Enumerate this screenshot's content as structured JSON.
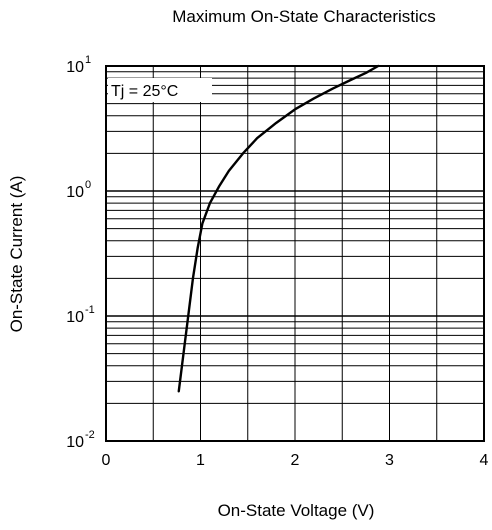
{
  "chart_data": {
    "type": "line",
    "title": "Maximum On-State Characteristics",
    "xlabel": "On-State Voltage  (V)",
    "ylabel": "On-State Current  (A)",
    "xlim": [
      0,
      4
    ],
    "ylim": [
      0.01,
      10
    ],
    "y_scale": "log",
    "grid": true,
    "x_ticks": [
      {
        "value": 0,
        "label": "0"
      },
      {
        "value": 1,
        "label": "1"
      },
      {
        "value": 2,
        "label": "2"
      },
      {
        "value": 3,
        "label": "3"
      },
      {
        "value": 4,
        "label": "4"
      }
    ],
    "y_ticks": [
      {
        "value": 0.01,
        "base": "10",
        "exp": "-2"
      },
      {
        "value": 0.1,
        "base": "10",
        "exp": "-1"
      },
      {
        "value": 1,
        "base": "10",
        "exp": "0"
      },
      {
        "value": 10,
        "base": "10",
        "exp": "1"
      }
    ],
    "annotation": "Tj = 25°C",
    "series": [
      {
        "color": "#000000",
        "points": [
          [
            0.77,
            0.025
          ],
          [
            0.82,
            0.05
          ],
          [
            0.87,
            0.1
          ],
          [
            0.92,
            0.2
          ],
          [
            0.97,
            0.35
          ],
          [
            1.02,
            0.55
          ],
          [
            1.1,
            0.8
          ],
          [
            1.2,
            1.1
          ],
          [
            1.3,
            1.45
          ],
          [
            1.45,
            2.0
          ],
          [
            1.6,
            2.65
          ],
          [
            1.8,
            3.5
          ],
          [
            2.0,
            4.5
          ],
          [
            2.2,
            5.5
          ],
          [
            2.4,
            6.6
          ],
          [
            2.6,
            7.8
          ],
          [
            2.75,
            8.8
          ],
          [
            2.88,
            10
          ]
        ]
      }
    ]
  }
}
